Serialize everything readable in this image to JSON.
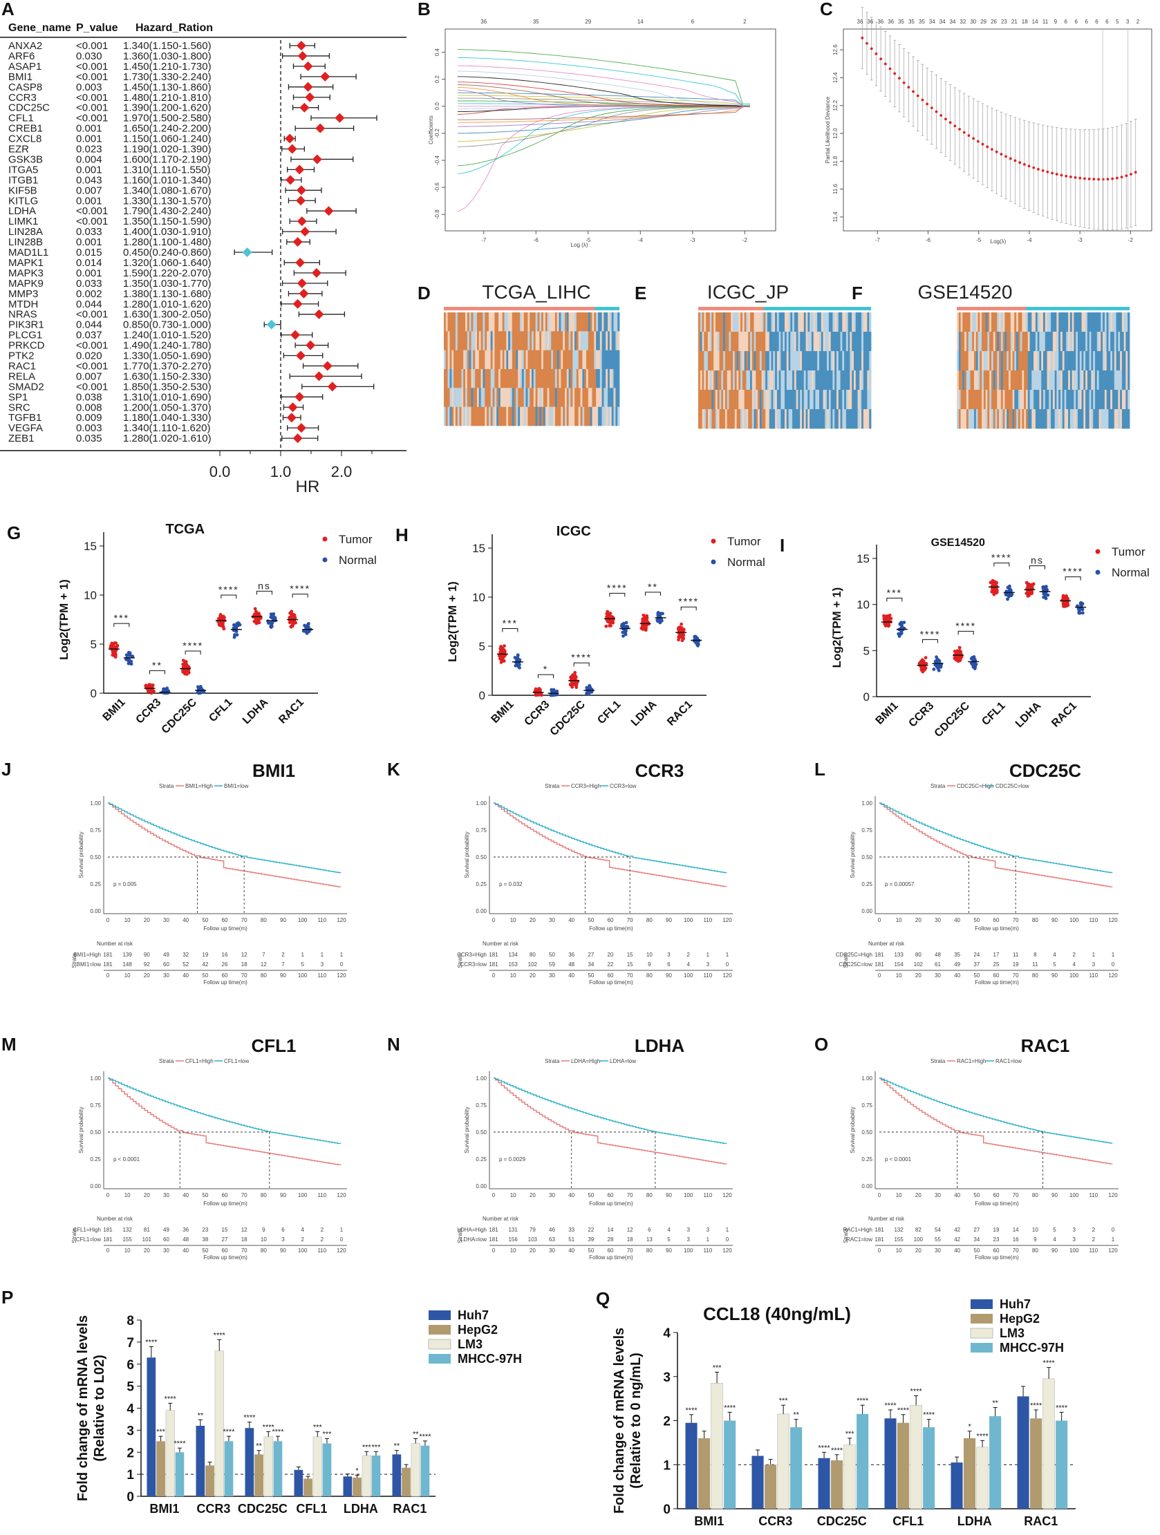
{
  "forest": {
    "panel": "A",
    "headers": [
      "Gene_name",
      "P_value",
      "Hazard_Ration"
    ],
    "rows": [
      {
        "gene": "ANXA2",
        "p": "<0.001",
        "hr": 1.34,
        "lo": 1.15,
        "hi": 1.56,
        "txt": "1.340(1.150-1.560)"
      },
      {
        "gene": "ARF6",
        "p": "0.030",
        "hr": 1.36,
        "lo": 1.03,
        "hi": 1.8,
        "txt": "1.360(1.030-1.800)"
      },
      {
        "gene": "ASAP1",
        "p": "<0.001",
        "hr": 1.45,
        "lo": 1.21,
        "hi": 1.73,
        "txt": "1.450(1.210-1.730)"
      },
      {
        "gene": "BMI1",
        "p": "<0.001",
        "hr": 1.73,
        "lo": 1.33,
        "hi": 2.24,
        "txt": "1.730(1.330-2.240)"
      },
      {
        "gene": "CASP8",
        "p": "0.003",
        "hr": 1.45,
        "lo": 1.13,
        "hi": 1.86,
        "txt": "1.450(1.130-1.860)"
      },
      {
        "gene": "CCR3",
        "p": "<0.001",
        "hr": 1.48,
        "lo": 1.21,
        "hi": 1.81,
        "txt": "1.480(1.210-1.810)"
      },
      {
        "gene": "CDC25C",
        "p": "<0.001",
        "hr": 1.39,
        "lo": 1.2,
        "hi": 1.62,
        "txt": "1.390(1.200-1.620)"
      },
      {
        "gene": "CFL1",
        "p": "<0.001",
        "hr": 1.97,
        "lo": 1.5,
        "hi": 2.58,
        "txt": "1.970(1.500-2.580)"
      },
      {
        "gene": "CREB1",
        "p": "0.001",
        "hr": 1.65,
        "lo": 1.24,
        "hi": 2.2,
        "txt": "1.650(1.240-2.200)"
      },
      {
        "gene": "CXCL8",
        "p": "0.001",
        "hr": 1.15,
        "lo": 1.06,
        "hi": 1.24,
        "txt": "1.150(1.060-1.240)"
      },
      {
        "gene": "EZR",
        "p": "0.023",
        "hr": 1.19,
        "lo": 1.02,
        "hi": 1.39,
        "txt": "1.190(1.020-1.390)"
      },
      {
        "gene": "GSK3B",
        "p": "0.004",
        "hr": 1.6,
        "lo": 1.17,
        "hi": 2.19,
        "txt": "1.600(1.170-2.190)"
      },
      {
        "gene": "ITGA5",
        "p": "0.001",
        "hr": 1.31,
        "lo": 1.11,
        "hi": 1.55,
        "txt": "1.310(1.110-1.550)"
      },
      {
        "gene": "ITGB1",
        "p": "0.043",
        "hr": 1.16,
        "lo": 1.01,
        "hi": 1.34,
        "txt": "1.160(1.010-1.340)"
      },
      {
        "gene": "KIF5B",
        "p": "0.007",
        "hr": 1.34,
        "lo": 1.08,
        "hi": 1.67,
        "txt": "1.340(1.080-1.670)"
      },
      {
        "gene": "KITLG",
        "p": "0.001",
        "hr": 1.33,
        "lo": 1.13,
        "hi": 1.57,
        "txt": "1.330(1.130-1.570)"
      },
      {
        "gene": "LDHA",
        "p": "<0.001",
        "hr": 1.79,
        "lo": 1.43,
        "hi": 2.24,
        "txt": "1.790(1.430-2.240)"
      },
      {
        "gene": "LIMK1",
        "p": "<0.001",
        "hr": 1.35,
        "lo": 1.15,
        "hi": 1.59,
        "txt": "1.350(1.150-1.590)"
      },
      {
        "gene": "LIN28A",
        "p": "0.033",
        "hr": 1.4,
        "lo": 1.03,
        "hi": 1.91,
        "txt": "1.400(1.030-1.910)"
      },
      {
        "gene": "LIN28B",
        "p": "0.001",
        "hr": 1.28,
        "lo": 1.1,
        "hi": 1.48,
        "txt": "1.280(1.100-1.480)"
      },
      {
        "gene": "MAD1L1",
        "p": "0.015",
        "hr": 0.45,
        "lo": 0.24,
        "hi": 0.86,
        "txt": "0.450(0.240-0.860)"
      },
      {
        "gene": "MAPK1",
        "p": "0.014",
        "hr": 1.32,
        "lo": 1.06,
        "hi": 1.64,
        "txt": "1.320(1.060-1.640)"
      },
      {
        "gene": "MAPK3",
        "p": "0.001",
        "hr": 1.59,
        "lo": 1.22,
        "hi": 2.07,
        "txt": "1.590(1.220-2.070)"
      },
      {
        "gene": "MAPK9",
        "p": "0.033",
        "hr": 1.35,
        "lo": 1.03,
        "hi": 1.77,
        "txt": "1.350(1.030-1.770)"
      },
      {
        "gene": "MMP3",
        "p": "0.002",
        "hr": 1.38,
        "lo": 1.13,
        "hi": 1.68,
        "txt": "1.380(1.130-1.680)"
      },
      {
        "gene": "MTDH",
        "p": "0.044",
        "hr": 1.28,
        "lo": 1.01,
        "hi": 1.62,
        "txt": "1.280(1.010-1.620)"
      },
      {
        "gene": "NRAS",
        "p": "<0.001",
        "hr": 1.63,
        "lo": 1.3,
        "hi": 2.05,
        "txt": "1.630(1.300-2.050)"
      },
      {
        "gene": "PIK3R1",
        "p": "0.044",
        "hr": 0.85,
        "lo": 0.73,
        "hi": 1.0,
        "txt": "0.850(0.730-1.000)"
      },
      {
        "gene": "PLCG1",
        "p": "0.037",
        "hr": 1.24,
        "lo": 1.01,
        "hi": 1.52,
        "txt": "1.240(1.010-1.520)"
      },
      {
        "gene": "PRKCD",
        "p": "<0.001",
        "hr": 1.49,
        "lo": 1.24,
        "hi": 1.78,
        "txt": "1.490(1.240-1.780)"
      },
      {
        "gene": "PTK2",
        "p": "0.020",
        "hr": 1.33,
        "lo": 1.05,
        "hi": 1.69,
        "txt": "1.330(1.050-1.690)"
      },
      {
        "gene": "RAC1",
        "p": "<0.001",
        "hr": 1.77,
        "lo": 1.37,
        "hi": 2.27,
        "txt": "1.770(1.370-2.270)"
      },
      {
        "gene": "RELA",
        "p": "0.007",
        "hr": 1.63,
        "lo": 1.15,
        "hi": 2.33,
        "txt": "1.630(1.150-2.330)"
      },
      {
        "gene": "SMAD2",
        "p": "<0.001",
        "hr": 1.85,
        "lo": 1.35,
        "hi": 2.53,
        "txt": "1.850(1.350-2.530)"
      },
      {
        "gene": "SP1",
        "p": "0.038",
        "hr": 1.31,
        "lo": 1.01,
        "hi": 1.69,
        "txt": "1.310(1.010-1.690)"
      },
      {
        "gene": "SRC",
        "p": "0.008",
        "hr": 1.2,
        "lo": 1.05,
        "hi": 1.37,
        "txt": "1.200(1.050-1.370)"
      },
      {
        "gene": "TGFB1",
        "p": "0.009",
        "hr": 1.18,
        "lo": 1.04,
        "hi": 1.33,
        "txt": "1.180(1.040-1.330)"
      },
      {
        "gene": "VEGFA",
        "p": "0.003",
        "hr": 1.34,
        "lo": 1.11,
        "hi": 1.62,
        "txt": "1.340(1.110-1.620)"
      },
      {
        "gene": "ZEB1",
        "p": "0.035",
        "hr": 1.28,
        "lo": 1.02,
        "hi": 1.61,
        "txt": "1.280(1.020-1.610)"
      }
    ],
    "xticks": [
      "0.0",
      "1.0",
      "2.0"
    ],
    "xlabel": "HR",
    "colors": {
      "risk": "#e02020",
      "protect": "#4fc3d6"
    }
  },
  "lasso_path": {
    "panel": "B",
    "xlabel": "Log (λ)",
    "ylabel": "Coefficients",
    "xticks": [
      "-7",
      "-6",
      "-5",
      "-4",
      "-3",
      "-2"
    ],
    "yticks": [
      "-0.8",
      "-0.6",
      "-0.4",
      "-0.2",
      "0.0",
      "0.2",
      "0.4"
    ],
    "top_ticks": [
      "36",
      "35",
      "29",
      "14",
      "6",
      "2"
    ]
  },
  "cv_plot": {
    "panel": "C",
    "xlabel": "Log(λ)",
    "ylabel": "Partial Likelihood Deviance",
    "xticks": [
      "-7",
      "-6",
      "-5",
      "-4",
      "-3",
      "-2"
    ],
    "yticks": [
      "11.4",
      "11.6",
      "11.8",
      "12.0",
      "12.2",
      "12.4",
      "12.6"
    ],
    "top_ticks": [
      "36",
      "36",
      "36",
      "36",
      "35",
      "35",
      "35",
      "34",
      "34",
      "34",
      "32",
      "30",
      "29",
      "26",
      "23",
      "21",
      "18",
      "14",
      "11",
      "9",
      "6",
      "6",
      "6",
      "6",
      "6",
      "5",
      "3",
      "2"
    ]
  },
  "heatmaps": [
    {
      "panel": "D",
      "title": "TCGA_LIHC"
    },
    {
      "panel": "E",
      "title": "ICGC_JP"
    },
    {
      "panel": "F",
      "title": "GSE14520"
    }
  ],
  "chart_data": [
    {
      "type": "scatter",
      "panel": "G",
      "title": "TCGA",
      "ylabel": "Log2(TPM + 1)",
      "ylim": [
        0,
        15
      ],
      "yticks": [
        "0",
        "5",
        "10",
        "15"
      ],
      "categories": [
        "BMI1",
        "CCR3",
        "CDC25C",
        "CFL1",
        "LDHA",
        "RAC1"
      ],
      "series": [
        {
          "name": "Tumor",
          "values": [
            4.5,
            0.5,
            2.5,
            7.4,
            7.8,
            7.5
          ]
        },
        {
          "name": "Normal",
          "values": [
            3.6,
            0.1,
            0.3,
            6.5,
            7.4,
            6.5
          ]
        }
      ],
      "sig": [
        "***",
        "**",
        "****",
        "****",
        "ns",
        "****"
      ]
    },
    {
      "type": "scatter",
      "panel": "H",
      "title": "ICGC",
      "ylabel": "Log2(TPM + 1)",
      "ylim": [
        0,
        15
      ],
      "yticks": [
        "0",
        "5",
        "10",
        "15"
      ],
      "categories": [
        "BMI1",
        "CCR3",
        "CDC25C",
        "CFL1",
        "LDHA",
        "RAC1"
      ],
      "series": [
        {
          "name": "Tumor",
          "values": [
            4.2,
            0.3,
            1.5,
            7.8,
            7.3,
            6.4
          ]
        },
        {
          "name": "Normal",
          "values": [
            3.4,
            0.2,
            0.5,
            6.8,
            7.9,
            5.6
          ]
        }
      ],
      "sig": [
        "***",
        "*",
        "****",
        "****",
        "**",
        "****"
      ]
    },
    {
      "type": "scatter",
      "panel": "I",
      "title": "GSE14520",
      "ylabel": "Log2(TPM + 1)",
      "ylim": [
        0,
        15
      ],
      "yticks": [
        "0",
        "5",
        "10",
        "15"
      ],
      "categories": [
        "BMI1",
        "CCR3",
        "CDC25C",
        "CFL1",
        "LDHA",
        "RAC1"
      ],
      "series": [
        {
          "name": "Tumor",
          "values": [
            8.1,
            3.4,
            4.5,
            11.9,
            11.6,
            10.4
          ]
        },
        {
          "name": "Normal",
          "values": [
            7.3,
            3.6,
            3.8,
            11.3,
            11.4,
            9.7
          ]
        }
      ],
      "sig": [
        "***",
        "****",
        "****",
        "****",
        "ns",
        "****"
      ]
    },
    {
      "type": "line",
      "panel": "J",
      "title": "BMI1",
      "pval": "p = 0.005",
      "high": "BMI1=High",
      "low": "BMI1=low",
      "risk_high": [
        "181",
        "139",
        "90",
        "49",
        "32",
        "19",
        "16",
        "12",
        "7",
        "2",
        "1",
        "1",
        "1"
      ],
      "risk_low": [
        "181",
        "148",
        "92",
        "60",
        "52",
        "42",
        "26",
        "18",
        "12",
        "7",
        "5",
        "3",
        "0"
      ],
      "med_high": 46,
      "med_low": 70
    },
    {
      "type": "line",
      "panel": "K",
      "title": "CCR3",
      "pval": "p = 0.032",
      "high": "CCR3=High",
      "low": "CCR3=low",
      "risk_high": [
        "181",
        "134",
        "80",
        "50",
        "36",
        "27",
        "20",
        "15",
        "10",
        "3",
        "2",
        "1",
        "1"
      ],
      "risk_low": [
        "181",
        "153",
        "102",
        "59",
        "48",
        "34",
        "22",
        "15",
        "9",
        "6",
        "4",
        "3",
        "0"
      ],
      "med_high": 47,
      "med_low": 70
    },
    {
      "type": "line",
      "panel": "L",
      "title": "CDC25C",
      "pval": "p = 0.00057",
      "high": "CDC25C=High",
      "low": "CDC25C=low",
      "risk_high": [
        "181",
        "133",
        "80",
        "48",
        "35",
        "24",
        "17",
        "11",
        "8",
        "4",
        "2",
        "1",
        "1"
      ],
      "risk_low": [
        "181",
        "154",
        "102",
        "61",
        "49",
        "37",
        "25",
        "19",
        "11",
        "5",
        "4",
        "3",
        "0"
      ],
      "med_high": 46,
      "med_low": 70
    },
    {
      "type": "line",
      "panel": "M",
      "title": "CFL1",
      "pval": "p < 0.0001",
      "high": "CFL1=High",
      "low": "CFL1=low",
      "risk_high": [
        "181",
        "132",
        "81",
        "49",
        "36",
        "23",
        "15",
        "12",
        "9",
        "6",
        "4",
        "2",
        "1"
      ],
      "risk_low": [
        "181",
        "155",
        "101",
        "60",
        "48",
        "38",
        "27",
        "18",
        "10",
        "3",
        "2",
        "2",
        "0"
      ],
      "med_high": 37,
      "med_low": 83
    },
    {
      "type": "line",
      "panel": "N",
      "title": "LDHA",
      "pval": "p = 0.0029",
      "high": "LDHA=High",
      "low": "LDHA=low",
      "risk_high": [
        "181",
        "131",
        "79",
        "46",
        "33",
        "22",
        "14",
        "12",
        "6",
        "4",
        "3",
        "3",
        "1"
      ],
      "risk_low": [
        "181",
        "156",
        "103",
        "63",
        "51",
        "39",
        "28",
        "18",
        "13",
        "5",
        "3",
        "1",
        "0"
      ],
      "med_high": 40,
      "med_low": 83
    },
    {
      "type": "line",
      "panel": "O",
      "title": "RAC1",
      "pval": "p < 0.0001",
      "high": "RAC1=High",
      "low": "RAC1=low",
      "risk_high": [
        "181",
        "132",
        "82",
        "54",
        "42",
        "27",
        "19",
        "14",
        "10",
        "5",
        "3",
        "2",
        "0"
      ],
      "risk_low": [
        "181",
        "155",
        "100",
        "55",
        "42",
        "34",
        "23",
        "16",
        "9",
        "4",
        "3",
        "2",
        "1"
      ],
      "med_high": 40,
      "med_low": 84
    },
    {
      "type": "bar",
      "panel": "P",
      "title": "",
      "ylabel1": "Fold change of mRNA levels",
      "ylabel2": "(Relative to L02)",
      "ylim": [
        0,
        8
      ],
      "yticks": [
        "0",
        "1",
        "2",
        "3",
        "4",
        "5",
        "6",
        "7",
        "8"
      ],
      "categories": [
        "BMI1",
        "CCR3",
        "CDC25C",
        "CFL1",
        "LDHA",
        "RAC1"
      ],
      "series": [
        {
          "name": "Huh7",
          "values": [
            6.3,
            3.2,
            3.1,
            1.2,
            0.9,
            1.9
          ],
          "sig": [
            "****",
            "**",
            "****",
            "",
            "",
            "**"
          ]
        },
        {
          "name": "HepG2",
          "values": [
            2.5,
            1.4,
            1.9,
            0.8,
            0.85,
            1.3
          ],
          "sig": [
            "***",
            "",
            "**",
            "",
            "*",
            ""
          ]
        },
        {
          "name": "LM3",
          "values": [
            3.9,
            6.6,
            2.7,
            2.7,
            1.85,
            2.4
          ],
          "sig": [
            "****",
            "****",
            "****",
            "***",
            "***",
            "**"
          ]
        },
        {
          "name": "MHCC-97H",
          "values": [
            2.0,
            2.5,
            2.5,
            2.4,
            1.85,
            2.3
          ],
          "sig": [
            "****",
            "****",
            "****",
            "***",
            "***",
            "****"
          ]
        }
      ]
    },
    {
      "type": "bar",
      "panel": "Q",
      "title": "CCL18 (40ng/mL)",
      "ylabel1": "Fold change of mRNA levels",
      "ylabel2": "(Relative to 0 ng/mL)",
      "ylim": [
        0,
        4
      ],
      "yticks": [
        "0",
        "1",
        "2",
        "3",
        "4"
      ],
      "categories": [
        "BMI1",
        "CCR3",
        "CDC25C",
        "CFL1",
        "LDHA",
        "RAC1"
      ],
      "series": [
        {
          "name": "Huh7",
          "values": [
            1.95,
            1.2,
            1.15,
            2.05,
            1.05,
            2.55
          ],
          "sig": [
            "****",
            "",
            "****",
            "****",
            "",
            ""
          ]
        },
        {
          "name": "HepG2",
          "values": [
            1.6,
            1.0,
            1.1,
            1.95,
            1.6,
            2.05
          ],
          "sig": [
            "",
            "",
            "****",
            "****",
            "*",
            "****"
          ]
        },
        {
          "name": "LM3",
          "values": [
            2.85,
            2.15,
            1.45,
            2.35,
            1.4,
            2.95
          ],
          "sig": [
            "***",
            "***",
            "***",
            "****",
            "****",
            "****"
          ]
        },
        {
          "name": "MHCC-97H",
          "values": [
            2.0,
            1.85,
            2.15,
            1.85,
            2.1,
            2.0
          ],
          "sig": [
            "****",
            "**",
            "****",
            "****",
            "**",
            "****"
          ]
        }
      ]
    }
  ],
  "colors": {
    "tumor": "#e02020",
    "normal": "#2850a8",
    "km_high": "#e87878",
    "km_low": "#2ab0c8",
    "bar": [
      "#2e56a6",
      "#b09a6e",
      "#ecead8",
      "#6fb7cf"
    ]
  },
  "km_common": {
    "ylabel": "Survival probability",
    "xlabel": "Follow up time(m)",
    "strata": "Strata",
    "risk_title": "Number at risk",
    "yticks": [
      "0.00",
      "0.25",
      "0.50",
      "0.75",
      "1.00"
    ],
    "xticks": [
      "0",
      "10",
      "20",
      "30",
      "40",
      "50",
      "60",
      "70",
      "80",
      "90",
      "100",
      "110",
      "120"
    ]
  },
  "legend_scatter": [
    "Tumor",
    "Normal"
  ]
}
